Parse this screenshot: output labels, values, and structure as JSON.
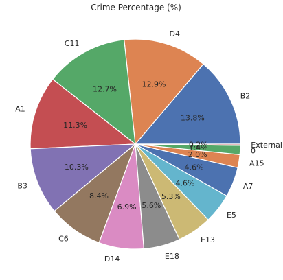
{
  "chart_data": {
    "type": "pie",
    "title": "Crime Percentage (%)",
    "start_angle_deg": 0,
    "direction": "counterclockwise",
    "categories": [
      "B2",
      "D4",
      "C11",
      "A1",
      "B3",
      "C6",
      "D14",
      "E18",
      "E13",
      "E5",
      "A7",
      "A15",
      "0",
      "External"
    ],
    "values": [
      13.8,
      12.9,
      12.7,
      11.3,
      10.3,
      8.4,
      6.9,
      5.6,
      5.3,
      4.6,
      4.6,
      2.0,
      1.4,
      0.2
    ],
    "value_labels": [
      "13.8%",
      "12.9%",
      "12.7%",
      "11.3%",
      "10.3%",
      "8.4%",
      "6.9%",
      "5.6%",
      "5.3%",
      "4.6%",
      "4.6%",
      "2.0%",
      "1.4%",
      "0.2%"
    ],
    "colors": [
      "#4c72b0",
      "#dd8452",
      "#55a868",
      "#c44e52",
      "#8172b3",
      "#937860",
      "#da8bc3",
      "#8c8c8c",
      "#ccb974",
      "#64b5cd",
      "#4c72b0",
      "#dd8452",
      "#55a868",
      "#c44e52"
    ]
  }
}
